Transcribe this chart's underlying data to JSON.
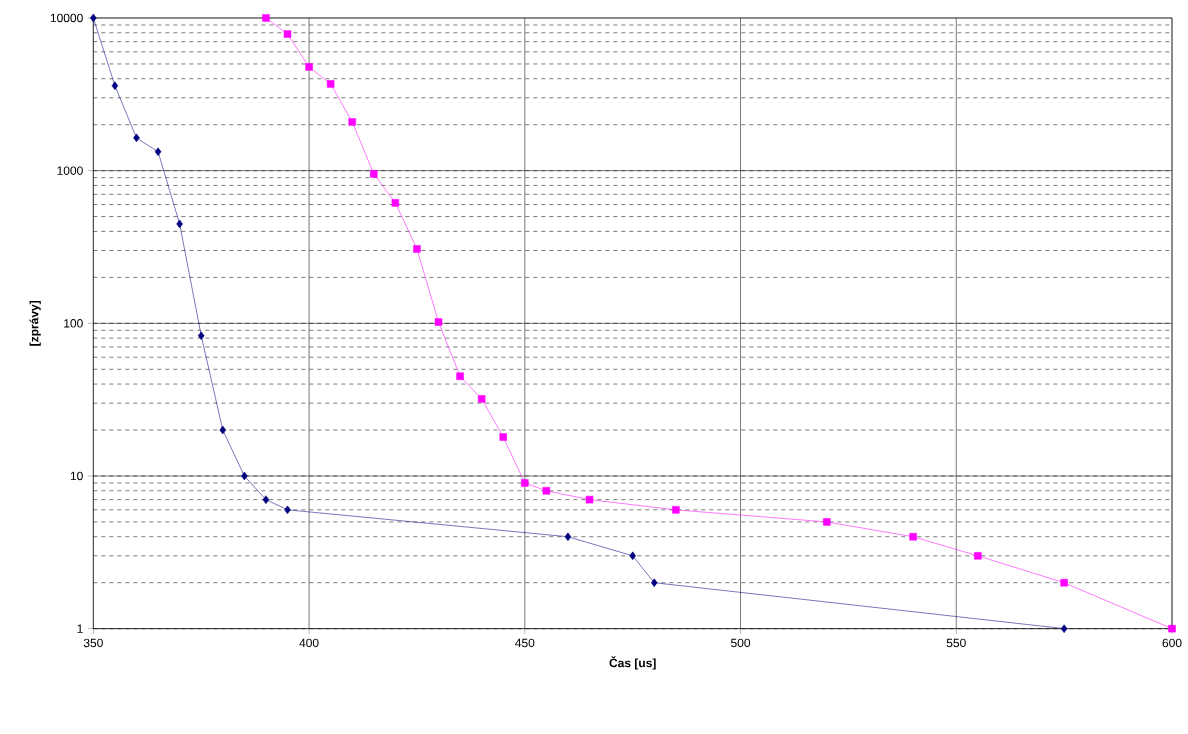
{
  "chart_data": {
    "type": "line",
    "xlabel": "Čas [us]",
    "ylabel": "[zprávy]",
    "log": "y",
    "grid": true,
    "xlim": [
      350,
      600
    ],
    "xticks": [
      350,
      400,
      450,
      500,
      550,
      600
    ],
    "ylim": [
      1,
      10000
    ],
    "yticks": [
      1,
      10,
      100,
      1000,
      10000
    ],
    "series": [
      {
        "color": "#000080",
        "marker": "diamond",
        "x": [
          350,
          355,
          360,
          365,
          370,
          375,
          380,
          385,
          390,
          395,
          460,
          475,
          480,
          575
        ],
        "values": [
          10000,
          3600,
          1640,
          1330,
          448,
          83,
          20,
          10,
          7,
          6,
          4,
          3,
          2,
          1
        ]
      },
      {
        "color": "#ff00ff",
        "marker": "square",
        "x": [
          390,
          395,
          400,
          405,
          410,
          415,
          420,
          425,
          430,
          435,
          440,
          445,
          450,
          455,
          465,
          485,
          520,
          540,
          555,
          575,
          600
        ],
        "values": [
          10000,
          7850,
          4780,
          3700,
          2085,
          952,
          615,
          307,
          102,
          45,
          32,
          18,
          9,
          8,
          7,
          6,
          5,
          4,
          3,
          2,
          1
        ]
      }
    ]
  }
}
